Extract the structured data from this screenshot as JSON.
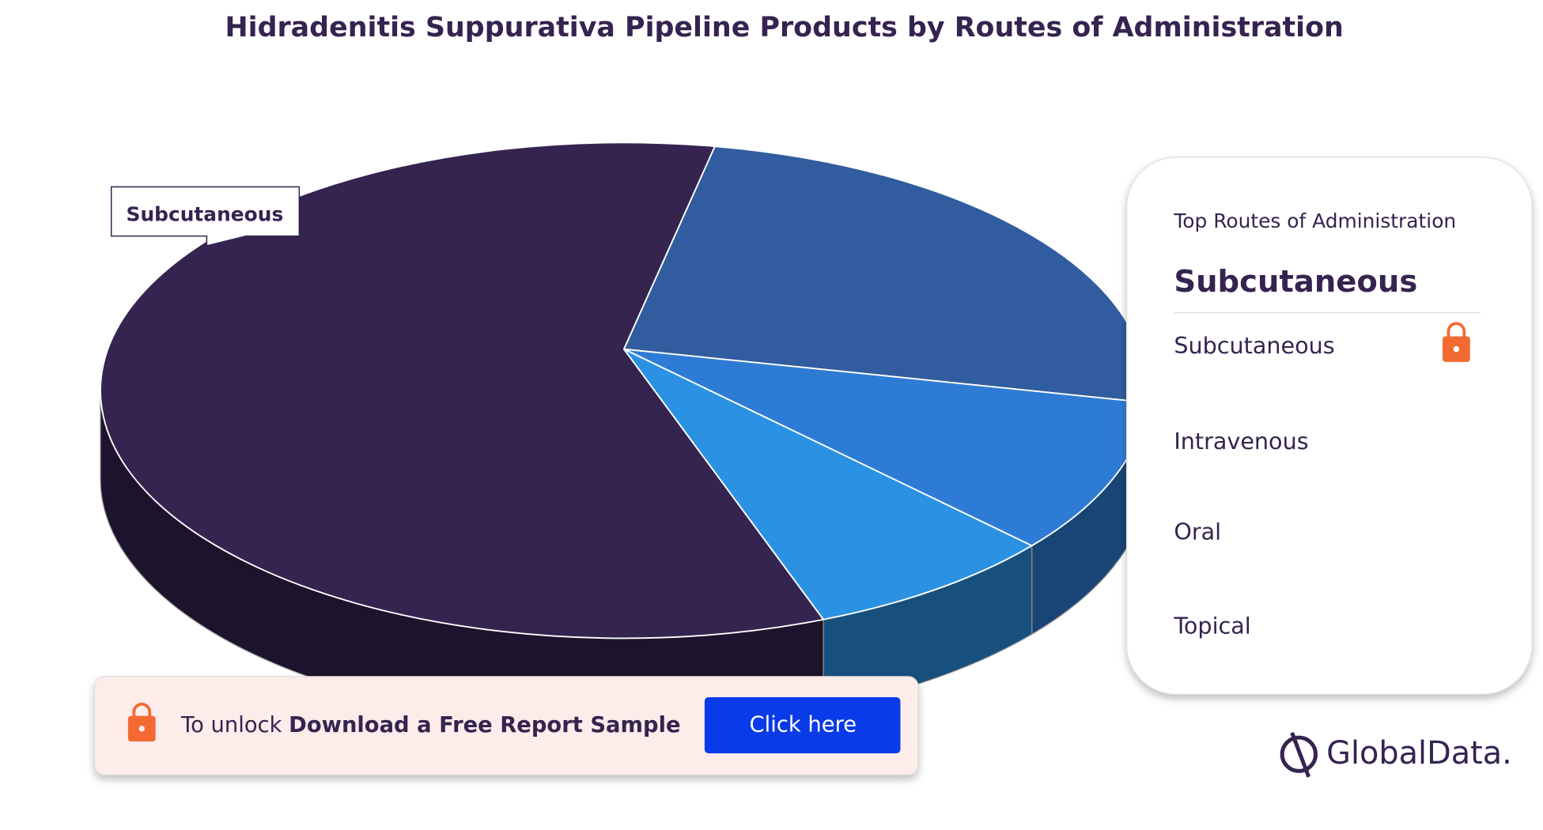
{
  "chart_data": {
    "type": "pie3d",
    "title": "Hidradenitis Suppurativa Pipeline Products by Routes of Administration",
    "categories": [
      "Subcutaneous",
      "Intravenous",
      "Oral",
      "Topical"
    ],
    "values": [
      59,
      23,
      10,
      8
    ],
    "colors": [
      "#352350",
      "#315c9f",
      "#2e7bd6",
      "#2b92e3"
    ]
  },
  "panel": {
    "title": "Top Routes of Administration"
  },
  "banner": {
    "lead": "To unlock",
    "strong": "Download a Free Report Sample",
    "button": "Click here"
  },
  "logo": "GlobalData."
}
